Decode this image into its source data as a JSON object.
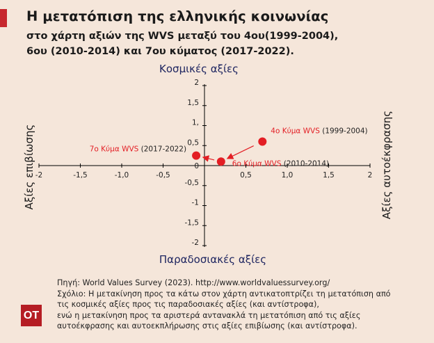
{
  "title": "Η μετατόπιση της ελληνικής κοινωνίας",
  "subtitle_lines": [
    "στο χάρτη αξιών της WVS μεταξύ του 4ου(1999-2004),",
    "6ου (2010-2014) και 7ου κύματος (2017-2022)."
  ],
  "colors": {
    "accent": "#c7282e",
    "point": "#e31e24",
    "axis_label": "#1e2560",
    "background": "#f5e6da"
  },
  "chart_data": {
    "type": "scatter",
    "xlim": [
      -2,
      2
    ],
    "ylim": [
      -2,
      2
    ],
    "grid": false,
    "axis_labels": {
      "top": "Κοσμικές αξίες",
      "bottom": "Παραδοσιακές αξίες",
      "left": "Αξίες επιβίωσης",
      "right": "Αξίες αυτοέκφρασης"
    },
    "x_ticks": [
      {
        "value": -2,
        "label": "-2"
      },
      {
        "value": -1.5,
        "label": "-1,5"
      },
      {
        "value": -1,
        "label": "-1,0"
      },
      {
        "value": -0.5,
        "label": "-0,5"
      },
      {
        "value": 0.5,
        "label": "0,5"
      },
      {
        "value": 1,
        "label": "1,0"
      },
      {
        "value": 1.5,
        "label": "1,5"
      },
      {
        "value": 2,
        "label": "2"
      }
    ],
    "y_ticks": [
      {
        "value": 2,
        "label": "2"
      },
      {
        "value": 1.5,
        "label": "1,5"
      },
      {
        "value": 1,
        "label": "1,"
      },
      {
        "value": 0.5,
        "label": "0,5"
      },
      {
        "value": 0,
        "label": "0"
      },
      {
        "value": -0.5,
        "label": "-0,5"
      },
      {
        "value": -1,
        "label": "-1"
      },
      {
        "value": -1.5,
        "label": "-1,5"
      },
      {
        "value": -2,
        "label": "-2"
      }
    ],
    "origin_label": "0",
    "points": [
      {
        "wave": "4ο Κύμα WVS",
        "period": "(1999-2004)",
        "x": 0.7,
        "y": 0.6
      },
      {
        "wave": "6ο Κύμα WVS",
        "period": "(2010-2014)",
        "x": 0.2,
        "y": 0.1
      },
      {
        "wave": "7ο Κύμα WVS",
        "period": "(2017-2022)",
        "x": -0.1,
        "y": 0.25
      }
    ],
    "arrows": [
      {
        "from": 0,
        "to": 1
      },
      {
        "from": 1,
        "to": 2
      }
    ]
  },
  "footer_lines": [
    "Πηγή: World Values Survey (2023). http://www.worldvaluessurvey.org/",
    "Σχόλιο: Η μετακίνηση προς τα κάτω στον χάρτη αντικατοπτρίζει τη μετατόπιση από",
    "τις κοσμικές αξίες προς τις παραδοσιακές αξίες (και αντίστροφα),",
    "ενώ η μετακίνηση προς τα αριστερά αντανακλά τη μετατόπιση από τις αξίες",
    "αυτοέκφρασης και αυτοεκπλήρωσης στις αξίες επιβίωσης (και αντίστροφα)."
  ],
  "logo_text": "ΟΤ"
}
